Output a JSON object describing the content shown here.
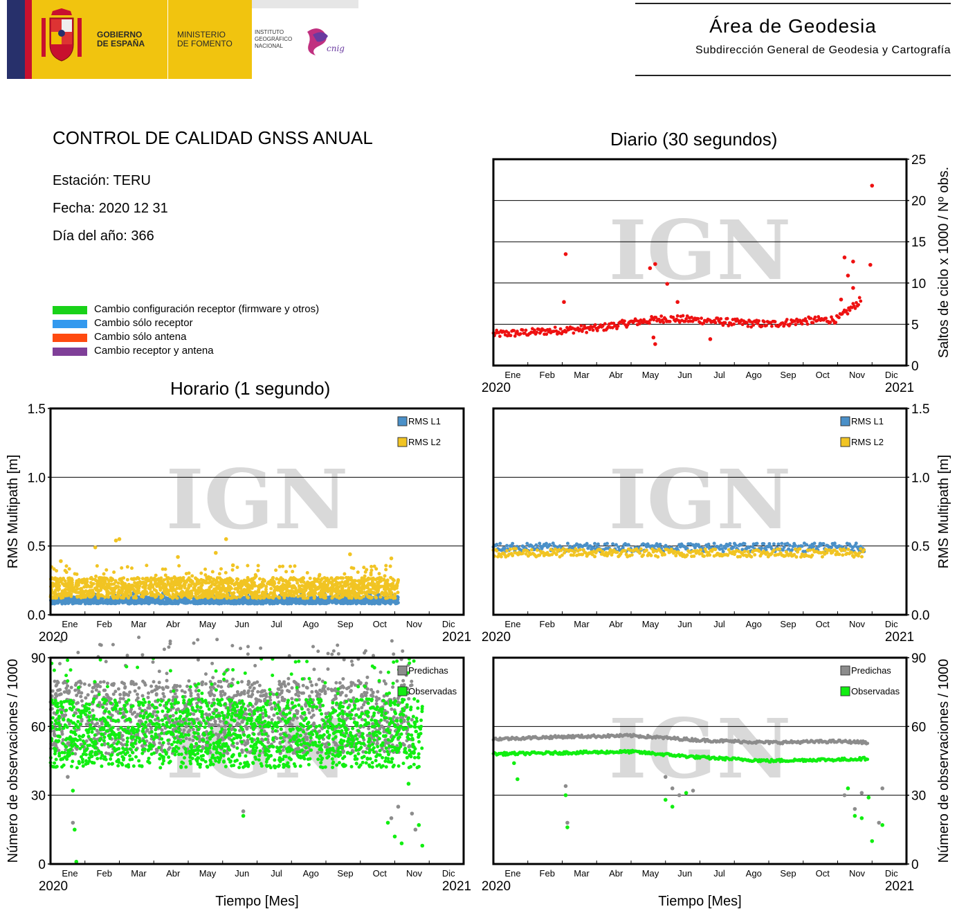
{
  "header": {
    "gov_line1": "GOBIERNO",
    "gov_line2": "DE ESPAÑA",
    "min_line1": "MINISTERIO",
    "min_line2": "DE FOMENTO",
    "ign_line1": "INSTITUTO",
    "ign_line2": "GEOGRÁFICO",
    "ign_line3": "NACIONAL",
    "cnig": "cnig",
    "area_title": "Área de Geodesia",
    "area_subtitle": "Subdirección General de Geodesia y Cartografía",
    "colors": {
      "yellow": "#f1c40f",
      "blue": "#27306b",
      "red": "#c8102e"
    }
  },
  "info": {
    "title": "CONTROL DE CALIDAD GNSS ANUAL",
    "station": "Estación: TERU",
    "date": "Fecha: 2020 12 31",
    "doy": "Día del año: 366"
  },
  "legend": [
    {
      "label": "Cambio configuración receptor (firmware y otros)",
      "color": "#19d219"
    },
    {
      "label": "Cambio sólo receptor",
      "color": "#3399ee"
    },
    {
      "label": "Cambio sólo antena",
      "color": "#ff4a10"
    },
    {
      "label": "Cambio receptor y antena",
      "color": "#7f3f98"
    }
  ],
  "watermark": "IGN",
  "months": [
    "Ene",
    "Feb",
    "Mar",
    "Abr",
    "May",
    "Jun",
    "Jul",
    "Ago",
    "Sep",
    "Oct",
    "Nov",
    "Dic"
  ],
  "year_start": "2020",
  "year_end": "2021",
  "section_titles": {
    "daily": "Diario (30 segundos)",
    "hourly": "Horario (1 segundo)"
  },
  "chart_data": [
    {
      "id": "daily-cycle-slips",
      "type": "scatter",
      "title": "Diario (30 segundos)",
      "ylabel": "Saltos de ciclo x 1000 / Nº obs.",
      "xlabel": "",
      "x_unit": "month",
      "xlim": [
        "2020-01-01",
        "2021-01-01"
      ],
      "ylim": [
        0,
        25
      ],
      "yticks": [
        0,
        5,
        10,
        15,
        20,
        25
      ],
      "grid": true,
      "series": [
        {
          "color": "#ee1111",
          "baseline": [
            [
              0,
              3.8
            ],
            [
              1,
              4.0
            ],
            [
              2,
              4.3
            ],
            [
              3,
              4.5
            ],
            [
              4,
              5.2
            ],
            [
              5,
              5.7
            ],
            [
              6,
              5.5
            ],
            [
              7,
              5.2
            ],
            [
              8,
              5.0
            ],
            [
              9,
              5.4
            ],
            [
              10,
              5.6
            ],
            [
              10.7,
              8.0
            ]
          ],
          "spread": 0.45,
          "outliers": [
            [
              2.1,
              13.5
            ],
            [
              2.05,
              7.7
            ],
            [
              4.55,
              11.8
            ],
            [
              4.7,
              12.3
            ],
            [
              5.05,
              9.9
            ],
            [
              4.7,
              2.6
            ],
            [
              4.65,
              3.4
            ],
            [
              5.35,
              7.7
            ],
            [
              6.3,
              3.2
            ],
            [
              10.1,
              8.0
            ],
            [
              10.2,
              13.1
            ],
            [
              10.45,
              12.6
            ],
            [
              10.3,
              10.9
            ],
            [
              10.45,
              9.4
            ],
            [
              10.95,
              12.2
            ],
            [
              11.0,
              21.8
            ]
          ]
        }
      ]
    },
    {
      "id": "hourly-multipath",
      "type": "scatter",
      "title": "Horario (1 segundo)",
      "ylabel": "RMS Multipath [m]",
      "xlabel": "",
      "xlim": [
        "2020-01-01",
        "2021-01-01"
      ],
      "ylim": [
        0,
        1.5
      ],
      "yticks": [
        "0.0",
        "0.5",
        "1.0",
        "1.5"
      ],
      "grid": true,
      "legend_position": "top-right",
      "series": [
        {
          "name": "RMS L1",
          "color": "#4a90c8",
          "band": [
            0.08,
            0.13
          ],
          "extent": [
            0,
            10.1
          ]
        },
        {
          "name": "RMS L2",
          "color": "#f1c423",
          "band": [
            0.12,
            0.27
          ],
          "extent": [
            0,
            10.1
          ],
          "outliers": [
            [
              1.9,
              0.54
            ],
            [
              2.0,
              0.55
            ],
            [
              1.3,
              0.49
            ],
            [
              5.1,
              0.55
            ],
            [
              4.8,
              0.45
            ],
            [
              5.3,
              0.36
            ],
            [
              0.3,
              0.39
            ],
            [
              9.9,
              0.41
            ],
            [
              8.7,
              0.44
            ],
            [
              3.7,
              0.42
            ]
          ]
        }
      ]
    },
    {
      "id": "daily-multipath",
      "type": "scatter",
      "title": "",
      "ylabel": "RMS Multipath [m]",
      "xlabel": "",
      "xlim": [
        "2020-01-01",
        "2021-01-01"
      ],
      "ylim": [
        0,
        1.5
      ],
      "yticks": [
        "0.0",
        "0.5",
        "1.0",
        "1.5"
      ],
      "grid": true,
      "legend_position": "top-right",
      "series": [
        {
          "name": "RMS L1",
          "color": "#4a90c8",
          "center": 0.49,
          "spread": 0.03,
          "extent": [
            0,
            10.8
          ]
        },
        {
          "name": "RMS L2",
          "color": "#f1c423",
          "center": 0.45,
          "spread": 0.03,
          "extent": [
            0,
            10.8
          ]
        }
      ]
    },
    {
      "id": "hourly-observations",
      "type": "scatter",
      "title": "",
      "ylabel": "Número de observaciones / 1000",
      "xlabel": "Tiempo [Mes]",
      "xlim": [
        "2020-01-01",
        "2021-01-01"
      ],
      "ylim": [
        0,
        90
      ],
      "yticks": [
        0,
        30,
        60,
        90
      ],
      "grid": true,
      "legend_position": "top-right",
      "series": [
        {
          "name": "Predichas",
          "color": "#8c8c8c",
          "band": [
            48,
            80
          ],
          "extent": [
            0,
            10.5
          ],
          "outliers": [
            [
              0.5,
              38
            ],
            [
              0.65,
              18
            ],
            [
              5.6,
              23
            ],
            [
              9.9,
              20
            ],
            [
              10.1,
              25
            ],
            [
              10.5,
              22
            ],
            [
              10.6,
              15
            ]
          ]
        },
        {
          "name": "Observadas",
          "color": "#11ee11",
          "band": [
            42,
            72
          ],
          "extent": [
            0,
            10.8
          ],
          "outliers": [
            [
              0.65,
              32
            ],
            [
              0.7,
              15
            ],
            [
              0.75,
              1
            ],
            [
              5.6,
              21
            ],
            [
              9.8,
              18
            ],
            [
              10.0,
              12
            ],
            [
              10.2,
              9
            ],
            [
              10.8,
              8
            ],
            [
              10.7,
              17
            ],
            [
              10.4,
              35
            ]
          ]
        }
      ]
    },
    {
      "id": "daily-observations",
      "type": "scatter",
      "title": "",
      "ylabel": "Número de observaciones / 1000",
      "xlabel": "Tiempo [Mes]",
      "xlim": [
        "2020-01-01",
        "2021-01-01"
      ],
      "ylim": [
        0,
        90
      ],
      "yticks": [
        0,
        30,
        60,
        90
      ],
      "grid": true,
      "legend_position": "top-right",
      "series": [
        {
          "name": "Predichas",
          "color": "#8c8c8c",
          "baseline": [
            [
              0,
              54.5
            ],
            [
              2,
              55.5
            ],
            [
              4,
              56
            ],
            [
              6,
              54
            ],
            [
              8,
              53
            ],
            [
              10,
              53.5
            ],
            [
              10.9,
              53
            ]
          ],
          "outliers": [
            [
              2.1,
              34
            ],
            [
              2.15,
              18
            ],
            [
              5.0,
              38
            ],
            [
              5.2,
              33
            ],
            [
              5.4,
              30
            ],
            [
              5.8,
              32
            ],
            [
              10.5,
              24
            ],
            [
              10.2,
              30
            ],
            [
              10.7,
              31
            ],
            [
              11.3,
              33
            ],
            [
              11.2,
              18
            ]
          ]
        },
        {
          "name": "Observadas",
          "color": "#11ee11",
          "baseline": [
            [
              0,
              48
            ],
            [
              2,
              48.5
            ],
            [
              4,
              49
            ],
            [
              6,
              46.5
            ],
            [
              8,
              45
            ],
            [
              9.5,
              45.5
            ],
            [
              10,
              45.5
            ],
            [
              10.9,
              46
            ]
          ],
          "outliers": [
            [
              0.6,
              44
            ],
            [
              0.7,
              37
            ],
            [
              2.1,
              30
            ],
            [
              2.15,
              16
            ],
            [
              5.0,
              28
            ],
            [
              5.2,
              25
            ],
            [
              5.6,
              31
            ],
            [
              10.3,
              33
            ],
            [
              10.5,
              21
            ],
            [
              10.7,
              20
            ],
            [
              10.9,
              29
            ],
            [
              11.0,
              10
            ],
            [
              11.3,
              17
            ]
          ]
        }
      ]
    }
  ]
}
